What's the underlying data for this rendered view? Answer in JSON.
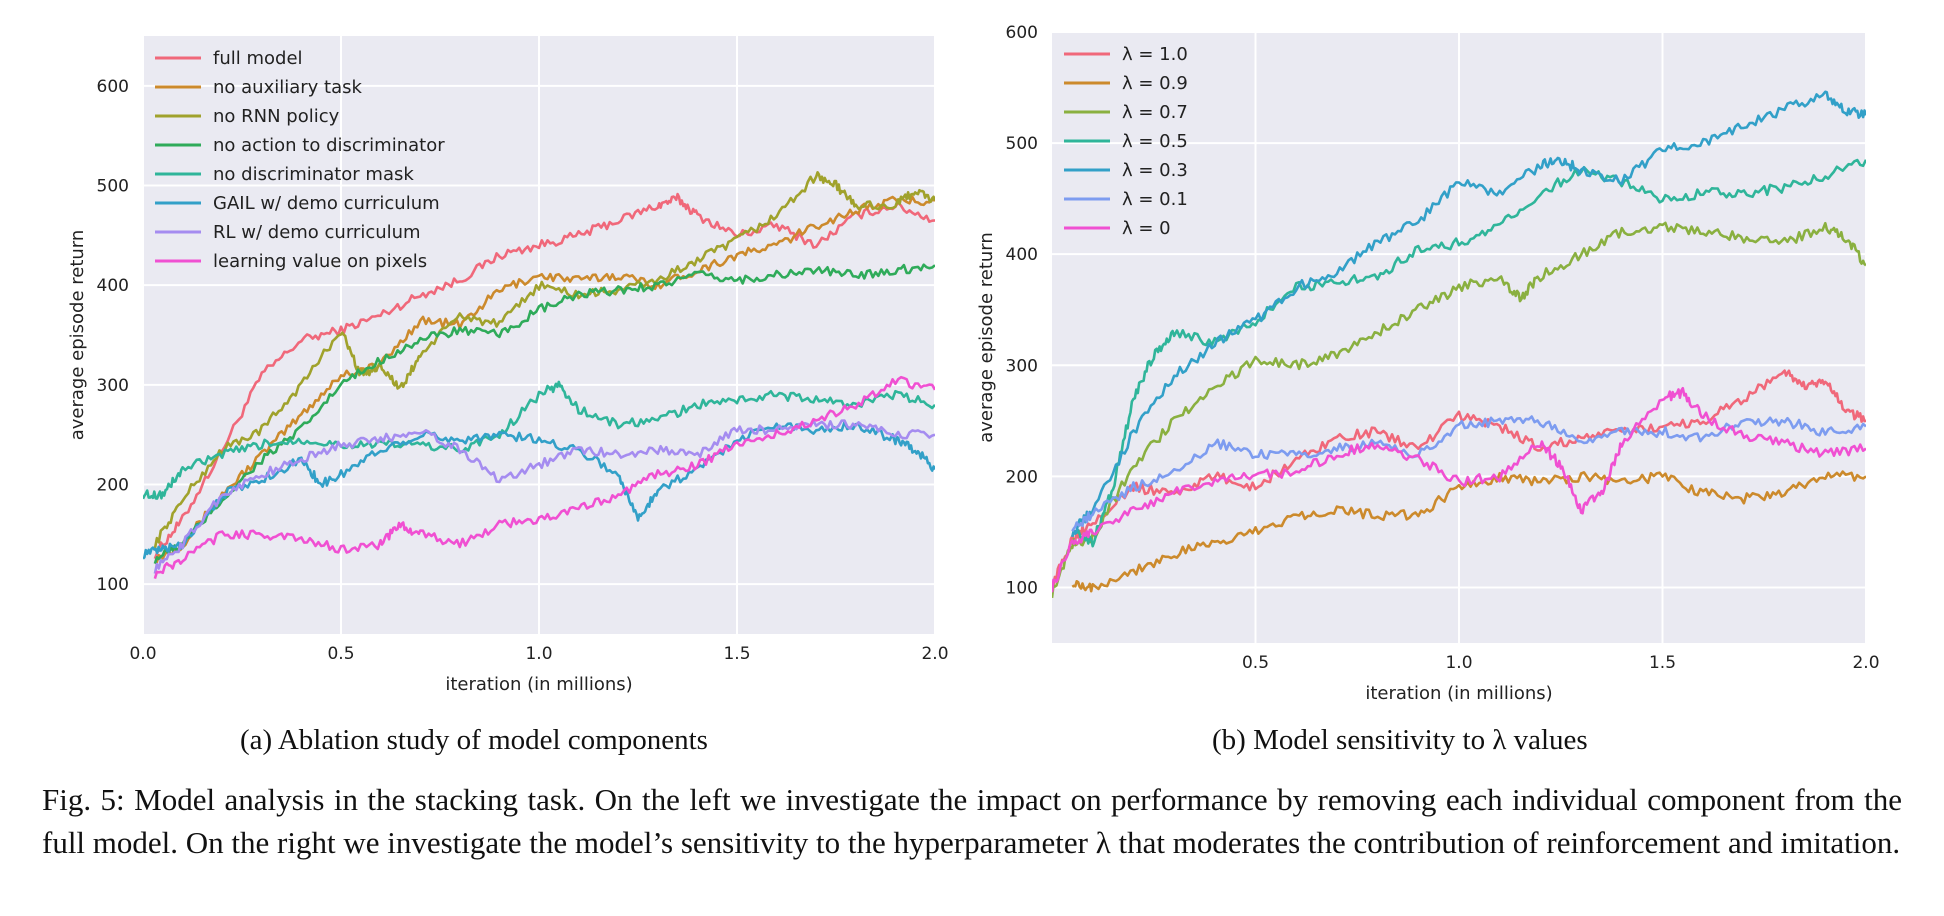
{
  "figure_label": "Fig. 5:",
  "caption": "Model analysis in the stacking task. On the left we investigate the impact on performance by removing each individual component from the full model. On the right we investigate the model’s sensitivity to the hyperparameter λ that moderates the contribution of reinforcement and imitation.",
  "subcaptions": {
    "a": "(a) Ablation study of model components",
    "b": "(b) Model sensitivity to λ values"
  },
  "chart_data": [
    {
      "type": "line",
      "xlabel": "iteration (in millions)",
      "ylabel": "average episode return",
      "xlim": [
        0.0,
        2.0
      ],
      "ylim": [
        50,
        650
      ],
      "xticks": [
        0.0,
        0.5,
        1.0,
        1.5,
        2.0
      ],
      "xtick_labels": [
        "0.0",
        "0.5",
        "1.0",
        "1.5",
        "2.0"
      ],
      "yticks": [
        100,
        200,
        300,
        400,
        500,
        600
      ],
      "ytick_labels": [
        "100",
        "200",
        "300",
        "400",
        "500",
        "600"
      ],
      "grid": true,
      "legend_position": "top-left",
      "series": [
        {
          "name": "full model",
          "color": "#f0687a",
          "x": [
            0.03,
            0.1,
            0.2,
            0.3,
            0.4,
            0.5,
            0.6,
            0.7,
            0.8,
            0.9,
            1.0,
            1.1,
            1.2,
            1.3,
            1.35,
            1.4,
            1.5,
            1.6,
            1.7,
            1.8,
            1.9,
            2.0
          ],
          "y": [
            130,
            165,
            235,
            310,
            345,
            355,
            370,
            390,
            405,
            430,
            440,
            450,
            465,
            480,
            487,
            470,
            450,
            460,
            440,
            470,
            480,
            465
          ]
        },
        {
          "name": "no auxiliary task",
          "color": "#cc8a2c",
          "x": [
            0.03,
            0.1,
            0.2,
            0.3,
            0.4,
            0.5,
            0.6,
            0.7,
            0.8,
            0.9,
            1.0,
            1.1,
            1.2,
            1.3,
            1.4,
            1.5,
            1.6,
            1.7,
            1.8,
            1.9,
            2.0
          ],
          "y": [
            125,
            140,
            190,
            230,
            270,
            310,
            320,
            365,
            360,
            395,
            410,
            405,
            410,
            400,
            415,
            430,
            440,
            460,
            475,
            485,
            485
          ]
        },
        {
          "name": "no RNN policy",
          "color": "#a0a22c",
          "x": [
            0.03,
            0.1,
            0.2,
            0.3,
            0.4,
            0.5,
            0.55,
            0.6,
            0.65,
            0.7,
            0.8,
            0.9,
            1.0,
            1.1,
            1.2,
            1.3,
            1.4,
            1.5,
            1.6,
            1.7,
            1.75,
            1.8,
            1.9,
            1.95,
            2.0
          ],
          "y": [
            140,
            185,
            235,
            255,
            300,
            355,
            310,
            320,
            295,
            330,
            370,
            360,
            400,
            390,
            395,
            405,
            425,
            445,
            470,
            510,
            500,
            480,
            480,
            495,
            485
          ]
        },
        {
          "name": "no action to discriminator",
          "color": "#2fab5a",
          "x": [
            0.03,
            0.1,
            0.2,
            0.3,
            0.4,
            0.5,
            0.6,
            0.7,
            0.8,
            0.9,
            1.0,
            1.1,
            1.2,
            1.3,
            1.4,
            1.5,
            1.6,
            1.7,
            1.8,
            1.9,
            2.0
          ],
          "y": [
            125,
            140,
            185,
            225,
            255,
            300,
            325,
            345,
            355,
            350,
            375,
            390,
            395,
            400,
            410,
            405,
            410,
            415,
            410,
            415,
            420
          ]
        },
        {
          "name": "no discriminator mask",
          "color": "#2fb59a",
          "x": [
            0.0,
            0.05,
            0.1,
            0.2,
            0.3,
            0.4,
            0.5,
            0.6,
            0.7,
            0.8,
            0.9,
            1.0,
            1.05,
            1.1,
            1.2,
            1.3,
            1.4,
            1.5,
            1.6,
            1.7,
            1.8,
            1.9,
            2.0
          ],
          "y": [
            190,
            190,
            215,
            230,
            240,
            245,
            240,
            240,
            240,
            235,
            250,
            290,
            300,
            275,
            260,
            265,
            280,
            285,
            290,
            285,
            280,
            290,
            280
          ]
        },
        {
          "name": "GAIL w/ demo curriculum",
          "color": "#32a0c8",
          "x": [
            0.0,
            0.05,
            0.1,
            0.2,
            0.3,
            0.4,
            0.45,
            0.5,
            0.6,
            0.7,
            0.8,
            0.9,
            1.0,
            1.1,
            1.2,
            1.25,
            1.3,
            1.4,
            1.5,
            1.6,
            1.7,
            1.8,
            1.9,
            1.95,
            2.0
          ],
          "y": [
            130,
            135,
            140,
            190,
            205,
            225,
            200,
            210,
            235,
            250,
            245,
            250,
            245,
            235,
            210,
            165,
            195,
            215,
            245,
            260,
            255,
            260,
            245,
            235,
            215
          ]
        },
        {
          "name": "RL w/ demo curriculum",
          "color": "#a58cf0",
          "x": [
            0.03,
            0.1,
            0.2,
            0.3,
            0.4,
            0.5,
            0.6,
            0.7,
            0.8,
            0.9,
            1.0,
            1.1,
            1.2,
            1.3,
            1.4,
            1.5,
            1.6,
            1.7,
            1.8,
            1.9,
            2.0
          ],
          "y": [
            115,
            140,
            190,
            210,
            225,
            240,
            245,
            255,
            235,
            205,
            220,
            235,
            230,
            235,
            230,
            255,
            255,
            260,
            260,
            250,
            250
          ]
        },
        {
          "name": "learning value on pixels",
          "color": "#f050d2",
          "x": [
            0.03,
            0.1,
            0.2,
            0.3,
            0.4,
            0.5,
            0.6,
            0.65,
            0.7,
            0.8,
            0.9,
            1.0,
            1.1,
            1.2,
            1.3,
            1.4,
            1.5,
            1.6,
            1.7,
            1.8,
            1.9,
            2.0
          ],
          "y": [
            110,
            125,
            150,
            150,
            145,
            135,
            140,
            160,
            150,
            140,
            160,
            165,
            175,
            190,
            210,
            220,
            240,
            250,
            265,
            280,
            305,
            295
          ]
        }
      ]
    },
    {
      "type": "line",
      "xlabel": "iteration (in millions)",
      "ylabel": "average episode return",
      "xlim": [
        0.0,
        2.0
      ],
      "ylim": [
        50,
        600
      ],
      "xticks": [
        0.5,
        1.0,
        1.5,
        2.0
      ],
      "xtick_labels": [
        "0.5",
        "1.0",
        "1.5",
        "2.0"
      ],
      "yticks": [
        100,
        200,
        300,
        400,
        500,
        600
      ],
      "ytick_labels": [
        "100",
        "200",
        "300",
        "400",
        "500",
        "600"
      ],
      "grid": true,
      "legend_position": "top-left",
      "series": [
        {
          "name": "λ = 1.0",
          "color": "#f0687a",
          "x": [
            0.0,
            0.05,
            0.1,
            0.2,
            0.3,
            0.4,
            0.5,
            0.6,
            0.7,
            0.8,
            0.9,
            1.0,
            1.1,
            1.2,
            1.3,
            1.4,
            1.5,
            1.6,
            1.7,
            1.8,
            1.85,
            1.9,
            1.95,
            2.0
          ],
          "y": [
            100,
            145,
            160,
            190,
            185,
            200,
            190,
            215,
            235,
            240,
            225,
            255,
            245,
            225,
            235,
            240,
            245,
            250,
            270,
            295,
            280,
            285,
            260,
            250
          ]
        },
        {
          "name": "λ = 0.9",
          "color": "#cc8a2c",
          "x": [
            0.05,
            0.1,
            0.2,
            0.3,
            0.4,
            0.5,
            0.6,
            0.7,
            0.8,
            0.9,
            1.0,
            1.1,
            1.2,
            1.3,
            1.4,
            1.5,
            1.6,
            1.7,
            1.8,
            1.9,
            2.0
          ],
          "y": [
            105,
            100,
            115,
            130,
            140,
            150,
            165,
            170,
            165,
            165,
            190,
            200,
            195,
            200,
            195,
            200,
            185,
            180,
            185,
            200,
            200
          ]
        },
        {
          "name": "λ = 0.7",
          "color": "#8ab040",
          "x": [
            0.0,
            0.05,
            0.1,
            0.2,
            0.3,
            0.4,
            0.5,
            0.6,
            0.7,
            0.8,
            0.9,
            1.0,
            1.1,
            1.15,
            1.2,
            1.3,
            1.4,
            1.5,
            1.6,
            1.7,
            1.8,
            1.9,
            1.95,
            2.0
          ],
          "y": [
            95,
            140,
            145,
            210,
            250,
            280,
            305,
            300,
            310,
            330,
            350,
            370,
            380,
            360,
            380,
            400,
            420,
            425,
            420,
            415,
            410,
            425,
            415,
            390
          ]
        },
        {
          "name": "λ = 0.5",
          "color": "#2fb59a",
          "x": [
            0.05,
            0.1,
            0.15,
            0.2,
            0.25,
            0.3,
            0.4,
            0.5,
            0.6,
            0.7,
            0.8,
            0.9,
            1.0,
            1.1,
            1.2,
            1.3,
            1.4,
            1.5,
            1.6,
            1.7,
            1.8,
            1.9,
            2.0
          ],
          "y": [
            150,
            140,
            190,
            270,
            310,
            330,
            320,
            340,
            370,
            375,
            380,
            405,
            410,
            425,
            455,
            475,
            465,
            450,
            455,
            455,
            460,
            470,
            485
          ]
        },
        {
          "name": "λ = 0.3",
          "color": "#32a0c8",
          "x": [
            0.05,
            0.1,
            0.2,
            0.3,
            0.4,
            0.5,
            0.6,
            0.7,
            0.8,
            0.9,
            1.0,
            1.1,
            1.2,
            1.25,
            1.3,
            1.4,
            1.5,
            1.6,
            1.7,
            1.8,
            1.9,
            1.95,
            2.0
          ],
          "y": [
            150,
            170,
            240,
            290,
            320,
            340,
            370,
            385,
            410,
            430,
            465,
            455,
            480,
            485,
            475,
            465,
            495,
            500,
            515,
            530,
            545,
            530,
            525
          ]
        },
        {
          "name": "λ = 0.1",
          "color": "#7d9cf0",
          "x": [
            0.05,
            0.1,
            0.2,
            0.3,
            0.4,
            0.5,
            0.6,
            0.7,
            0.8,
            0.9,
            1.0,
            1.1,
            1.2,
            1.3,
            1.4,
            1.5,
            1.6,
            1.7,
            1.8,
            1.9,
            2.0
          ],
          "y": [
            155,
            165,
            190,
            205,
            230,
            220,
            220,
            225,
            230,
            220,
            245,
            250,
            250,
            230,
            240,
            240,
            235,
            250,
            250,
            240,
            245
          ]
        },
        {
          "name": "λ = 0",
          "color": "#f050d2",
          "x": [
            0.0,
            0.05,
            0.1,
            0.2,
            0.3,
            0.4,
            0.5,
            0.6,
            0.7,
            0.8,
            0.9,
            1.0,
            1.1,
            1.2,
            1.25,
            1.3,
            1.35,
            1.4,
            1.5,
            1.55,
            1.6,
            1.7,
            1.8,
            1.9,
            2.0
          ],
          "y": [
            100,
            140,
            150,
            170,
            185,
            195,
            200,
            205,
            220,
            230,
            215,
            195,
            200,
            230,
            210,
            170,
            185,
            230,
            270,
            275,
            255,
            235,
            230,
            220,
            225
          ]
        }
      ]
    }
  ]
}
